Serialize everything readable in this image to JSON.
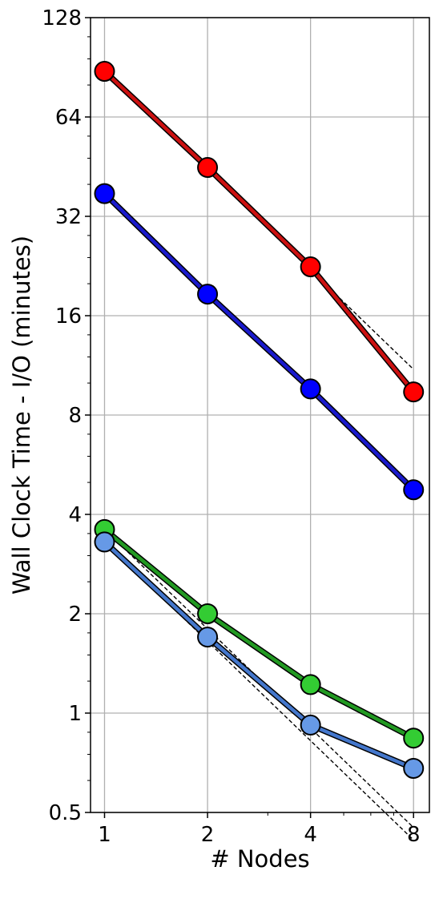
{
  "chart_data": {
    "type": "line",
    "title": "",
    "xlabel": "# Nodes",
    "ylabel": "Wall Clock Time - I/O (minutes)",
    "x_scale": "log2",
    "y_scale": "log2",
    "x": [
      1,
      2,
      4,
      8
    ],
    "x_tick_labels": [
      "1",
      "2",
      "4",
      "8"
    ],
    "y_ticks": [
      0.5,
      1,
      2,
      4,
      8,
      16,
      32,
      64,
      128
    ],
    "y_tick_labels": [
      "0.5",
      "1",
      "2",
      "4",
      "8",
      "16",
      "32",
      "64",
      "128"
    ],
    "xlim": [
      0.91,
      8.9
    ],
    "ylim": [
      0.5,
      128
    ],
    "grid": true,
    "legend": "none",
    "series": [
      {
        "color": "#ff0000",
        "line_color": "#cc1111",
        "values": [
          88,
          45,
          22.5,
          9.4
        ]
      },
      {
        "color": "#0000ff",
        "line_color": "#1a1acc",
        "values": [
          37.5,
          18.6,
          9.6,
          4.75
        ]
      },
      {
        "color": "#33cc33",
        "line_color": "#229922",
        "values": [
          3.6,
          2.0,
          1.22,
          0.84
        ]
      },
      {
        "color": "#6699e6",
        "line_color": "#4477cc",
        "values": [
          3.3,
          1.7,
          0.92,
          0.68
        ]
      }
    ],
    "reference_lines": [
      {
        "style": "dashed",
        "color": "#000000",
        "x": [
          1,
          8
        ],
        "y": [
          88,
          11.0
        ]
      },
      {
        "style": "dashed",
        "color": "#000000",
        "x": [
          1,
          8
        ],
        "y": [
          37.5,
          4.69
        ]
      },
      {
        "style": "dashed",
        "color": "#000000",
        "x": [
          1,
          8
        ],
        "y": [
          3.6,
          0.45
        ]
      },
      {
        "style": "dashed",
        "color": "#000000",
        "x": [
          1,
          8
        ],
        "y": [
          3.3,
          0.4125
        ]
      }
    ]
  }
}
